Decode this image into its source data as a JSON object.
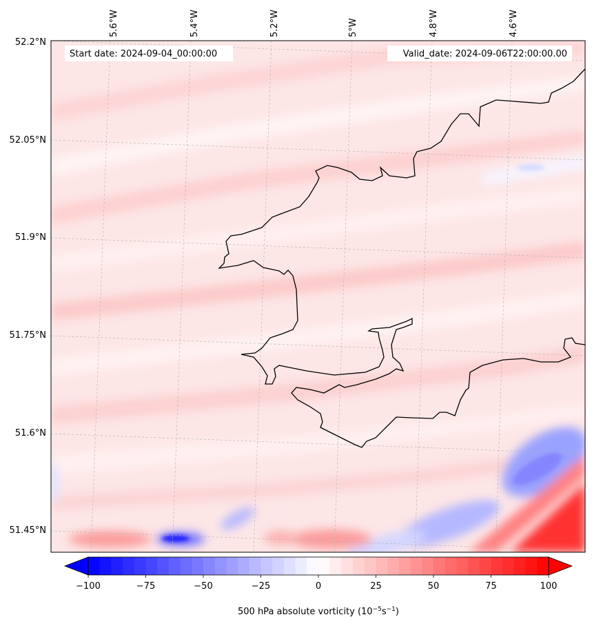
{
  "map": {
    "start_date_text": "Start date: 2024-09-04_00:00:00",
    "valid_date_text": "Valid_date: 2024-09-06T22:00:00.00",
    "lon_labels": [
      "5.6°W",
      "5.4°W",
      "5.2°W",
      "5°W",
      "4.8°W",
      "4.6°W"
    ],
    "lat_labels": [
      "52.2°N",
      "52.05°N",
      "51.9°N",
      "51.75°N",
      "51.6°N",
      "51.45°N"
    ],
    "colorbar": {
      "label": "500 hPa absolute vorticity (10",
      "label_exp1": "−5",
      "label_mid": "s",
      "label_exp2": "−1",
      "label_end": ")",
      "ticks": [
        "−100",
        "−75",
        "−50",
        "−25",
        "0",
        "25",
        "50",
        "75",
        "100"
      ],
      "vmin": -100,
      "vmax": 100,
      "colormap": "bwr"
    },
    "colors": {
      "blue": "#0000ff",
      "white": "#ffffff",
      "red": "#ff0000",
      "coastline": "#000000"
    }
  }
}
